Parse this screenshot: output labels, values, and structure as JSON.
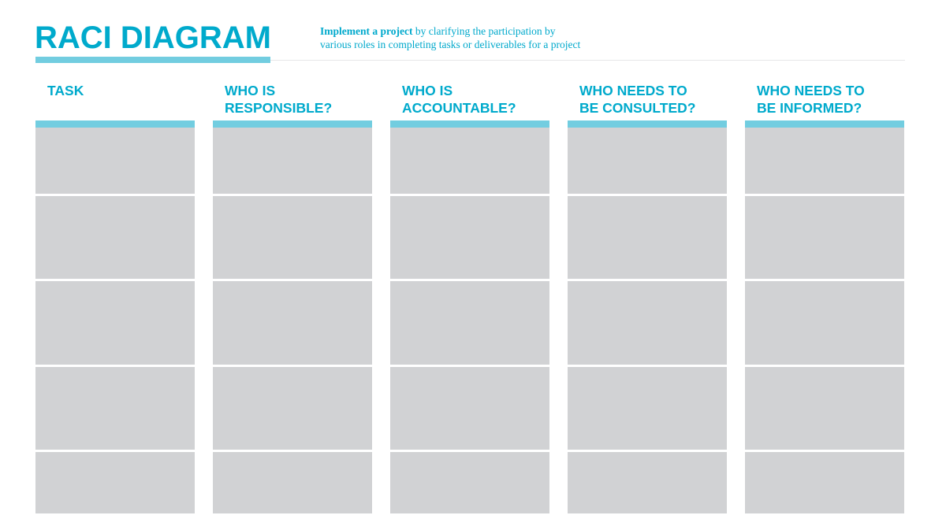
{
  "header": {
    "title": "RACI DIAGRAM",
    "subtitle_bold": "Implement a project",
    "subtitle_line1_rest": " by clarifying the participation by",
    "subtitle_line2": "various roles in completing tasks or deliverables for a project"
  },
  "columns": [
    {
      "line1": "TASK",
      "line2": ""
    },
    {
      "line1": "WHO IS",
      "line2": "RESPONSIBLE?"
    },
    {
      "line1": "WHO IS",
      "line2": "ACCOUNTABLE?"
    },
    {
      "line1": "WHO NEEDS TO",
      "line2": "BE CONSULTED?"
    },
    {
      "line1": "WHO NEEDS TO",
      "line2": "BE INFORMED?"
    }
  ],
  "row_count": 5,
  "colors": {
    "accent": "#00aacc",
    "bar": "#72cde0",
    "cell": "#d1d2d4"
  }
}
